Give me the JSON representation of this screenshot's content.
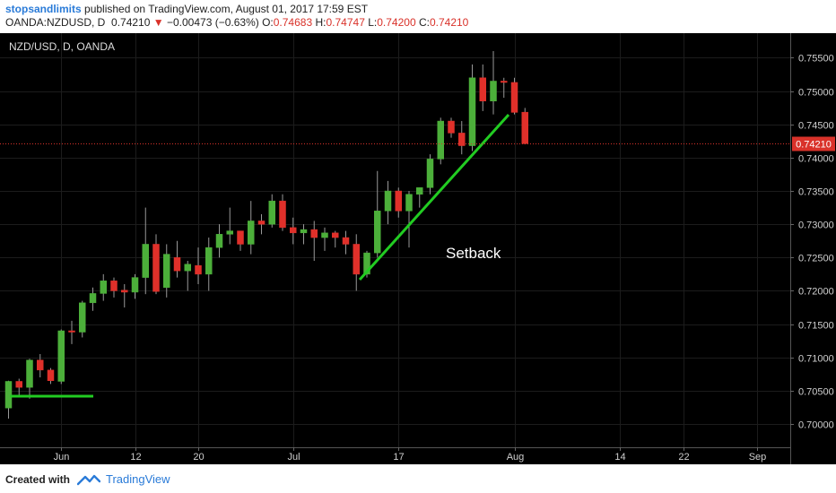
{
  "header": {
    "author": "stopsandlimits",
    "published_text": "published on TradingView.com, August 01, 2017 17:59 EST",
    "symbol": "OANDA:NZDUSD, D",
    "last": "0.74210",
    "change": "−0.00473 (−0.63%)",
    "ohlc": {
      "o_label": "O:",
      "o": "0.74683",
      "h_label": "H:",
      "h": "0.74747",
      "l_label": "L:",
      "l": "0.74200",
      "c_label": "C:",
      "c": "0.74210"
    }
  },
  "chart_title": "NZD/USD, D, OANDA",
  "annotation": "Setback",
  "current_price_label": "0.74210",
  "footer": {
    "created": "Created with",
    "brand": "TradingView"
  },
  "colors": {
    "up": "#4caf3a",
    "down": "#e0302a",
    "trendline": "#22cc22",
    "background": "#000000",
    "price_line": "#d9322a"
  },
  "chart_data": {
    "type": "candlestick",
    "title": "NZD/USD, D, OANDA",
    "ylim": [
      0.6965,
      0.7587
    ],
    "y_ticks": [
      0.7,
      0.705,
      0.71,
      0.715,
      0.72,
      0.725,
      0.73,
      0.735,
      0.74,
      0.745,
      0.75,
      0.755
    ],
    "y_tick_labels": [
      "0.70000",
      "0.70500",
      "0.71000",
      "0.71500",
      "0.72000",
      "0.72500",
      "0.73000",
      "0.73500",
      "0.74000",
      "0.74500",
      "0.75000",
      "0.75500"
    ],
    "x_tick_labels": [
      "Jun",
      "12",
      "20",
      "Jul",
      "17",
      "Aug",
      "14",
      "22",
      "Sep"
    ],
    "x_tick_index": [
      5,
      12,
      18,
      27,
      37,
      48,
      58,
      64,
      71
    ],
    "last_price": 0.7421,
    "candles": [
      [
        0.7024,
        0.7065,
        0.7008,
        0.7064
      ],
      [
        0.7064,
        0.7068,
        0.704,
        0.7055
      ],
      [
        0.7055,
        0.7098,
        0.7038,
        0.7096
      ],
      [
        0.7096,
        0.7105,
        0.707,
        0.7081
      ],
      [
        0.7081,
        0.7084,
        0.706,
        0.7065
      ],
      [
        0.7064,
        0.7142,
        0.706,
        0.714
      ],
      [
        0.714,
        0.7155,
        0.712,
        0.7138
      ],
      [
        0.7138,
        0.7185,
        0.713,
        0.7182
      ],
      [
        0.7182,
        0.7205,
        0.717,
        0.7196
      ],
      [
        0.7196,
        0.7225,
        0.7185,
        0.7215
      ],
      [
        0.7215,
        0.722,
        0.719,
        0.72
      ],
      [
        0.7201,
        0.721,
        0.7175,
        0.7198
      ],
      [
        0.7198,
        0.7225,
        0.7188,
        0.722
      ],
      [
        0.722,
        0.7325,
        0.7195,
        0.727
      ],
      [
        0.727,
        0.7285,
        0.7195,
        0.7199
      ],
      [
        0.7205,
        0.727,
        0.719,
        0.7255
      ],
      [
        0.725,
        0.7275,
        0.722,
        0.723
      ],
      [
        0.723,
        0.7245,
        0.72,
        0.724
      ],
      [
        0.7238,
        0.7265,
        0.721,
        0.7225
      ],
      [
        0.7225,
        0.728,
        0.72,
        0.7265
      ],
      [
        0.7265,
        0.73,
        0.725,
        0.7285
      ],
      [
        0.7285,
        0.7325,
        0.727,
        0.729
      ],
      [
        0.729,
        0.729,
        0.726,
        0.727
      ],
      [
        0.727,
        0.7335,
        0.7255,
        0.7305
      ],
      [
        0.7305,
        0.7315,
        0.7285,
        0.73
      ],
      [
        0.73,
        0.7345,
        0.7295,
        0.7335
      ],
      [
        0.7335,
        0.7345,
        0.729,
        0.7295
      ],
      [
        0.7295,
        0.731,
        0.727,
        0.7287
      ],
      [
        0.7287,
        0.73,
        0.727,
        0.7292
      ],
      [
        0.7292,
        0.7305,
        0.7245,
        0.728
      ],
      [
        0.728,
        0.7295,
        0.726,
        0.7287
      ],
      [
        0.7287,
        0.729,
        0.7265,
        0.728
      ],
      [
        0.728,
        0.729,
        0.7255,
        0.727
      ],
      [
        0.727,
        0.7285,
        0.72,
        0.7225
      ],
      [
        0.7225,
        0.726,
        0.722,
        0.7257
      ],
      [
        0.7257,
        0.738,
        0.725,
        0.732
      ],
      [
        0.732,
        0.7365,
        0.73,
        0.735
      ],
      [
        0.735,
        0.7355,
        0.731,
        0.732
      ],
      [
        0.732,
        0.735,
        0.7265,
        0.7345
      ],
      [
        0.7345,
        0.7355,
        0.7325,
        0.7355
      ],
      [
        0.7355,
        0.7405,
        0.7345,
        0.7398
      ],
      [
        0.7398,
        0.746,
        0.739,
        0.7455
      ],
      [
        0.7455,
        0.746,
        0.743,
        0.7437
      ],
      [
        0.7437,
        0.7455,
        0.7405,
        0.7418
      ],
      [
        0.7418,
        0.754,
        0.741,
        0.752
      ],
      [
        0.752,
        0.754,
        0.747,
        0.7485
      ],
      [
        0.7485,
        0.756,
        0.7465,
        0.7515
      ],
      [
        0.7515,
        0.752,
        0.749,
        0.7513
      ],
      [
        0.7513,
        0.752,
        0.7465,
        0.7468
      ],
      [
        0.74683,
        0.74747,
        0.742,
        0.7421
      ]
    ]
  }
}
